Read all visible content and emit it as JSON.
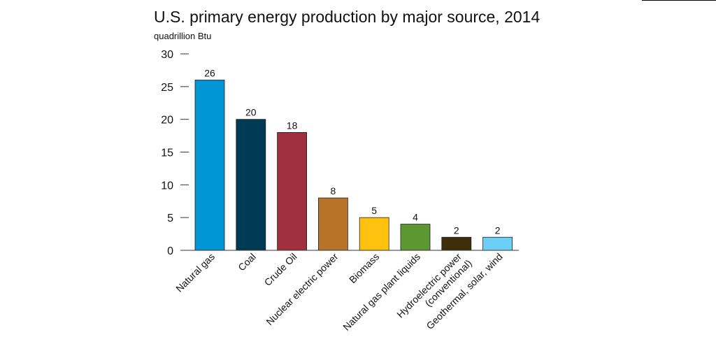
{
  "chart_data": {
    "type": "bar",
    "title": "U.S. primary energy production by major source, 2014",
    "subtitle": "quadrillion Btu",
    "categories": [
      "Natural gas",
      "Coal",
      "Crude Oil",
      "Nuclear electric power",
      "Biomass",
      "Natural gas plant liquids",
      [
        "Hydroelectric power",
        "(conventional)"
      ],
      "Geothermal, solar, wind"
    ],
    "values": [
      26,
      20,
      18,
      8,
      5,
      4,
      2,
      2
    ],
    "colors": [
      "#0096d6",
      "#003a54",
      "#a0303e",
      "#b8732b",
      "#ffc20e",
      "#5d9732",
      "#3e2f0a",
      "#6ccff6"
    ],
    "ylim": [
      0,
      30
    ],
    "yticks": [
      0,
      5,
      10,
      15,
      20,
      25,
      30
    ]
  }
}
